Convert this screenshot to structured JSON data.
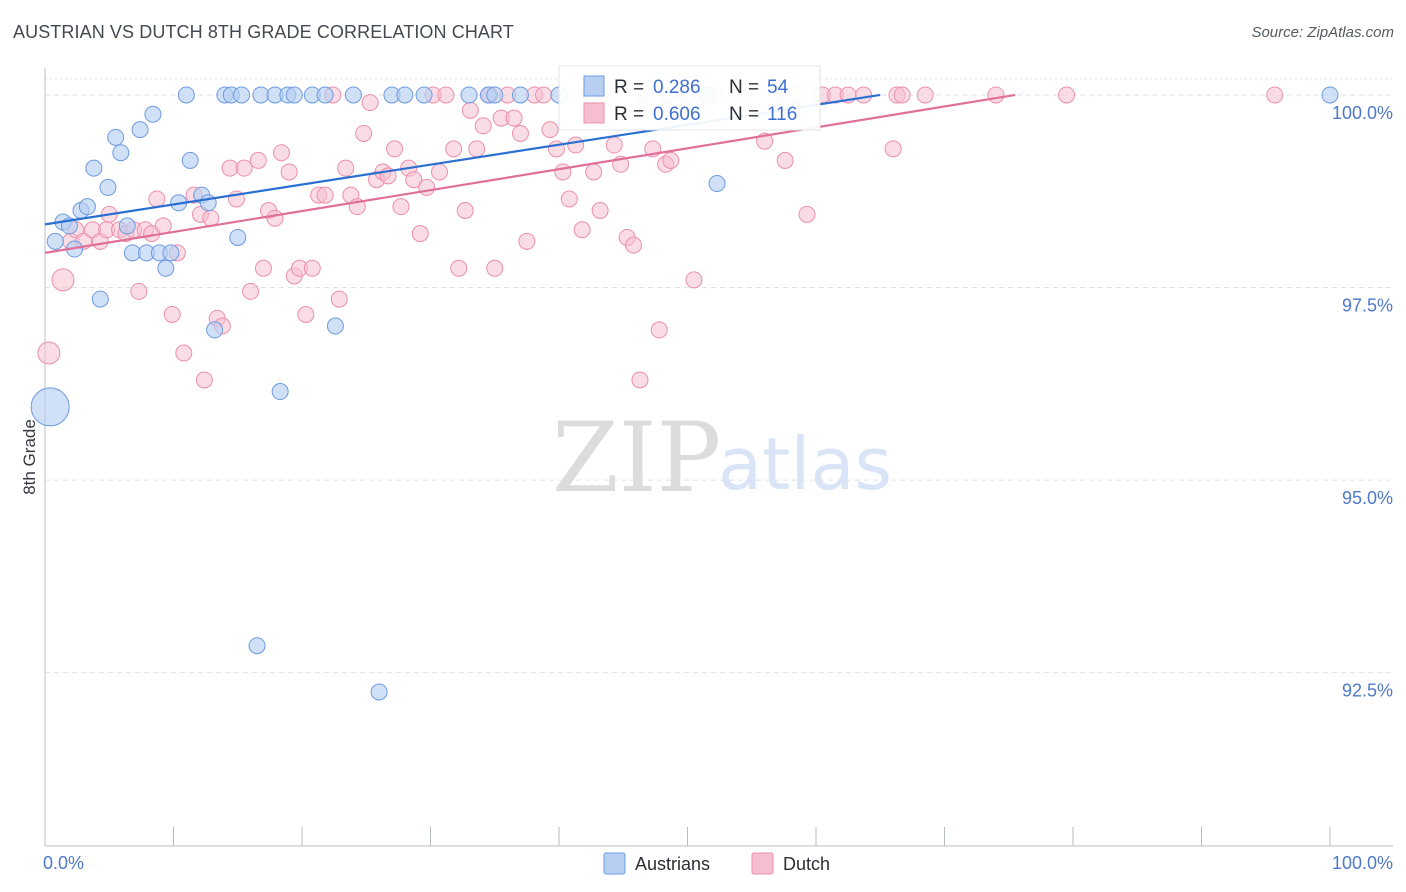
{
  "title": "AUSTRIAN VS DUTCH 8TH GRADE CORRELATION CHART",
  "source": "Source: ZipAtlas.com",
  "watermark": {
    "part1": "ZIP",
    "part2": "atlas"
  },
  "colors": {
    "austrians_fill": "#b7d0f2",
    "austrians_stroke": "#6d9be0",
    "austrians_line": "#2b6fd1",
    "dutch_fill": "#f6bfd0",
    "dutch_stroke": "#ec8fab",
    "dutch_line": "#e0709a",
    "tick_label": "#4f79c7",
    "grid": "#dde2ea"
  },
  "chart_data": {
    "type": "scatter",
    "title": "AUSTRIAN VS DUTCH 8TH GRADE CORRELATION CHART",
    "xlabel": "",
    "ylabel": "8th Grade",
    "xlim": [
      0,
      100
    ],
    "ylim": [
      90.25,
      100.35
    ],
    "x_tick_labels": {
      "left": "0.0%",
      "right": "100.0%"
    },
    "y_ticks": [
      {
        "value": 100.0,
        "label": "100.0%"
      },
      {
        "value": 97.5,
        "label": "97.5%"
      },
      {
        "value": 95.0,
        "label": "95.0%"
      },
      {
        "value": 92.5,
        "label": "92.5%"
      }
    ],
    "legend": [
      {
        "name": "Austrians",
        "r_label": "R = ",
        "r": "0.286",
        "n_label": "N = ",
        "n": "54"
      },
      {
        "name": "Dutch",
        "r_label": "R = ",
        "r": "0.606",
        "n_label": "N = ",
        "n": "116"
      }
    ],
    "series": [
      {
        "name": "Austrians",
        "trend": {
          "x0": 0,
          "y0": 98.32,
          "x1": 65,
          "y1": 100.0
        },
        "points": [
          {
            "x": 0.4,
            "y": 95.95,
            "size": 3
          },
          {
            "x": 0.8,
            "y": 98.1,
            "size": 1
          },
          {
            "x": 1.4,
            "y": 98.35,
            "size": 1
          },
          {
            "x": 1.9,
            "y": 98.3,
            "size": 1
          },
          {
            "x": 2.3,
            "y": 98.0,
            "size": 1
          },
          {
            "x": 2.8,
            "y": 98.5,
            "size": 1
          },
          {
            "x": 3.3,
            "y": 98.55,
            "size": 1
          },
          {
            "x": 3.8,
            "y": 99.05,
            "size": 1
          },
          {
            "x": 4.3,
            "y": 97.35,
            "size": 1
          },
          {
            "x": 4.9,
            "y": 98.8,
            "size": 1
          },
          {
            "x": 5.5,
            "y": 99.45,
            "size": 1
          },
          {
            "x": 5.9,
            "y": 99.25,
            "size": 1
          },
          {
            "x": 6.4,
            "y": 98.3,
            "size": 1
          },
          {
            "x": 6.8,
            "y": 97.95,
            "size": 1
          },
          {
            "x": 7.4,
            "y": 99.55,
            "size": 1
          },
          {
            "x": 7.9,
            "y": 97.95,
            "size": 1
          },
          {
            "x": 8.4,
            "y": 99.75,
            "size": 1
          },
          {
            "x": 8.9,
            "y": 97.95,
            "size": 1
          },
          {
            "x": 9.4,
            "y": 97.75,
            "size": 1
          },
          {
            "x": 9.8,
            "y": 97.95,
            "size": 1
          },
          {
            "x": 10.4,
            "y": 98.6,
            "size": 1
          },
          {
            "x": 11.0,
            "y": 100.0,
            "size": 1
          },
          {
            "x": 11.3,
            "y": 99.15,
            "size": 1
          },
          {
            "x": 12.2,
            "y": 98.7,
            "size": 1
          },
          {
            "x": 12.7,
            "y": 98.6,
            "size": 1
          },
          {
            "x": 13.2,
            "y": 96.95,
            "size": 1
          },
          {
            "x": 14.0,
            "y": 100.0,
            "size": 1
          },
          {
            "x": 14.5,
            "y": 100.0,
            "size": 1
          },
          {
            "x": 15.0,
            "y": 98.15,
            "size": 1
          },
          {
            "x": 15.3,
            "y": 100.0,
            "size": 1
          },
          {
            "x": 16.5,
            "y": 92.85,
            "size": 1
          },
          {
            "x": 16.8,
            "y": 100.0,
            "size": 1
          },
          {
            "x": 17.9,
            "y": 100.0,
            "size": 1
          },
          {
            "x": 18.3,
            "y": 96.15,
            "size": 1
          },
          {
            "x": 18.9,
            "y": 100.0,
            "size": 1
          },
          {
            "x": 19.4,
            "y": 100.0,
            "size": 1
          },
          {
            "x": 20.8,
            "y": 100.0,
            "size": 1
          },
          {
            "x": 21.8,
            "y": 100.0,
            "size": 1
          },
          {
            "x": 22.6,
            "y": 97.0,
            "size": 1
          },
          {
            "x": 24.0,
            "y": 100.0,
            "size": 1
          },
          {
            "x": 26.0,
            "y": 92.25,
            "size": 1
          },
          {
            "x": 27.0,
            "y": 100.0,
            "size": 1
          },
          {
            "x": 28.0,
            "y": 100.0,
            "size": 1
          },
          {
            "x": 29.5,
            "y": 100.0,
            "size": 1
          },
          {
            "x": 33.0,
            "y": 100.0,
            "size": 1
          },
          {
            "x": 34.5,
            "y": 100.0,
            "size": 1
          },
          {
            "x": 35.0,
            "y": 100.0,
            "size": 1
          },
          {
            "x": 37.0,
            "y": 100.0,
            "size": 1
          },
          {
            "x": 40.0,
            "y": 100.0,
            "size": 1
          },
          {
            "x": 42.5,
            "y": 100.0,
            "size": 1
          },
          {
            "x": 48.5,
            "y": 100.0,
            "size": 1
          },
          {
            "x": 51.5,
            "y": 100.0,
            "size": 1
          },
          {
            "x": 52.3,
            "y": 98.85,
            "size": 1
          },
          {
            "x": 100.0,
            "y": 100.0,
            "size": 1
          }
        ]
      },
      {
        "name": "Dutch",
        "trend": {
          "x0": 0,
          "y0": 97.95,
          "x1": 75.5,
          "y1": 100.0
        },
        "points": [
          {
            "x": 0.3,
            "y": 96.65,
            "size": 2
          },
          {
            "x": 1.4,
            "y": 97.6,
            "size": 2
          },
          {
            "x": 2.0,
            "y": 98.1,
            "size": 1
          },
          {
            "x": 2.4,
            "y": 98.25,
            "size": 1
          },
          {
            "x": 3.0,
            "y": 98.1,
            "size": 1
          },
          {
            "x": 3.7,
            "y": 98.25,
            "size": 1
          },
          {
            "x": 4.3,
            "y": 98.1,
            "size": 1
          },
          {
            "x": 4.8,
            "y": 98.25,
            "size": 1
          },
          {
            "x": 5.0,
            "y": 98.45,
            "size": 1
          },
          {
            "x": 5.8,
            "y": 98.25,
            "size": 1
          },
          {
            "x": 6.3,
            "y": 98.2,
            "size": 1
          },
          {
            "x": 6.9,
            "y": 98.25,
            "size": 1
          },
          {
            "x": 7.3,
            "y": 97.45,
            "size": 1
          },
          {
            "x": 7.8,
            "y": 98.25,
            "size": 1
          },
          {
            "x": 8.3,
            "y": 98.2,
            "size": 1
          },
          {
            "x": 8.7,
            "y": 98.65,
            "size": 1
          },
          {
            "x": 9.2,
            "y": 98.3,
            "size": 1
          },
          {
            "x": 9.9,
            "y": 97.15,
            "size": 1
          },
          {
            "x": 10.3,
            "y": 97.95,
            "size": 1
          },
          {
            "x": 10.8,
            "y": 96.65,
            "size": 1
          },
          {
            "x": 11.6,
            "y": 98.7,
            "size": 1
          },
          {
            "x": 12.1,
            "y": 98.45,
            "size": 1
          },
          {
            "x": 12.4,
            "y": 96.3,
            "size": 1
          },
          {
            "x": 12.9,
            "y": 98.4,
            "size": 1
          },
          {
            "x": 13.4,
            "y": 97.1,
            "size": 1
          },
          {
            "x": 13.8,
            "y": 97.0,
            "size": 1
          },
          {
            "x": 14.4,
            "y": 99.05,
            "size": 1
          },
          {
            "x": 14.9,
            "y": 98.65,
            "size": 1
          },
          {
            "x": 15.5,
            "y": 99.05,
            "size": 1
          },
          {
            "x": 16.0,
            "y": 97.45,
            "size": 1
          },
          {
            "x": 16.6,
            "y": 99.15,
            "size": 1
          },
          {
            "x": 17.0,
            "y": 97.75,
            "size": 1
          },
          {
            "x": 17.4,
            "y": 98.5,
            "size": 1
          },
          {
            "x": 17.9,
            "y": 98.4,
            "size": 1
          },
          {
            "x": 18.4,
            "y": 99.25,
            "size": 1
          },
          {
            "x": 19.0,
            "y": 99.0,
            "size": 1
          },
          {
            "x": 19.4,
            "y": 97.65,
            "size": 1
          },
          {
            "x": 19.8,
            "y": 97.75,
            "size": 1
          },
          {
            "x": 20.3,
            "y": 97.15,
            "size": 1
          },
          {
            "x": 20.8,
            "y": 97.75,
            "size": 1
          },
          {
            "x": 21.3,
            "y": 98.7,
            "size": 1
          },
          {
            "x": 21.8,
            "y": 98.7,
            "size": 1
          },
          {
            "x": 22.4,
            "y": 100.0,
            "size": 1
          },
          {
            "x": 22.9,
            "y": 97.35,
            "size": 1
          },
          {
            "x": 23.4,
            "y": 99.05,
            "size": 1
          },
          {
            "x": 23.8,
            "y": 98.7,
            "size": 1
          },
          {
            "x": 24.3,
            "y": 98.55,
            "size": 1
          },
          {
            "x": 24.8,
            "y": 99.5,
            "size": 1
          },
          {
            "x": 25.3,
            "y": 99.9,
            "size": 1
          },
          {
            "x": 25.8,
            "y": 98.9,
            "size": 1
          },
          {
            "x": 26.3,
            "y": 99.0,
            "size": 1
          },
          {
            "x": 26.7,
            "y": 98.95,
            "size": 1
          },
          {
            "x": 27.2,
            "y": 99.3,
            "size": 1
          },
          {
            "x": 27.7,
            "y": 98.55,
            "size": 1
          },
          {
            "x": 28.3,
            "y": 99.05,
            "size": 1
          },
          {
            "x": 28.7,
            "y": 98.9,
            "size": 1
          },
          {
            "x": 29.2,
            "y": 98.2,
            "size": 1
          },
          {
            "x": 29.7,
            "y": 98.8,
            "size": 1
          },
          {
            "x": 30.2,
            "y": 100.0,
            "size": 1
          },
          {
            "x": 30.7,
            "y": 99.0,
            "size": 1
          },
          {
            "x": 31.2,
            "y": 100.0,
            "size": 1
          },
          {
            "x": 31.8,
            "y": 99.3,
            "size": 1
          },
          {
            "x": 32.2,
            "y": 97.75,
            "size": 1
          },
          {
            "x": 32.7,
            "y": 98.5,
            "size": 1
          },
          {
            "x": 33.1,
            "y": 99.8,
            "size": 1
          },
          {
            "x": 33.6,
            "y": 99.3,
            "size": 1
          },
          {
            "x": 34.1,
            "y": 99.6,
            "size": 1
          },
          {
            "x": 34.6,
            "y": 100.0,
            "size": 1
          },
          {
            "x": 35.0,
            "y": 97.75,
            "size": 1
          },
          {
            "x": 35.5,
            "y": 99.7,
            "size": 1
          },
          {
            "x": 36.0,
            "y": 100.0,
            "size": 1
          },
          {
            "x": 36.5,
            "y": 99.7,
            "size": 1
          },
          {
            "x": 37.0,
            "y": 99.5,
            "size": 1
          },
          {
            "x": 37.5,
            "y": 98.1,
            "size": 1
          },
          {
            "x": 38.1,
            "y": 100.0,
            "size": 1
          },
          {
            "x": 38.8,
            "y": 100.0,
            "size": 1
          },
          {
            "x": 39.3,
            "y": 99.55,
            "size": 1
          },
          {
            "x": 39.8,
            "y": 99.3,
            "size": 1
          },
          {
            "x": 40.3,
            "y": 99.0,
            "size": 1
          },
          {
            "x": 40.8,
            "y": 98.65,
            "size": 1
          },
          {
            "x": 41.3,
            "y": 99.35,
            "size": 1
          },
          {
            "x": 41.8,
            "y": 98.25,
            "size": 1
          },
          {
            "x": 42.3,
            "y": 100.0,
            "size": 1
          },
          {
            "x": 42.7,
            "y": 99.0,
            "size": 1
          },
          {
            "x": 43.2,
            "y": 98.5,
            "size": 1
          },
          {
            "x": 43.7,
            "y": 100.0,
            "size": 1
          },
          {
            "x": 44.3,
            "y": 99.35,
            "size": 1
          },
          {
            "x": 44.8,
            "y": 99.1,
            "size": 1
          },
          {
            "x": 45.3,
            "y": 98.15,
            "size": 1
          },
          {
            "x": 45.8,
            "y": 98.05,
            "size": 1
          },
          {
            "x": 46.3,
            "y": 96.3,
            "size": 1
          },
          {
            "x": 46.8,
            "y": 100.0,
            "size": 1
          },
          {
            "x": 47.3,
            "y": 99.3,
            "size": 1
          },
          {
            "x": 47.8,
            "y": 96.95,
            "size": 1
          },
          {
            "x": 48.3,
            "y": 99.1,
            "size": 1
          },
          {
            "x": 48.7,
            "y": 99.15,
            "size": 1
          },
          {
            "x": 50.0,
            "y": 100.0,
            "size": 1
          },
          {
            "x": 50.5,
            "y": 97.6,
            "size": 1
          },
          {
            "x": 52.0,
            "y": 100.0,
            "size": 1
          },
          {
            "x": 54.0,
            "y": 100.0,
            "size": 1
          },
          {
            "x": 56.0,
            "y": 99.4,
            "size": 1
          },
          {
            "x": 57.0,
            "y": 100.0,
            "size": 1
          },
          {
            "x": 57.6,
            "y": 99.15,
            "size": 1
          },
          {
            "x": 58.5,
            "y": 100.0,
            "size": 1
          },
          {
            "x": 59.3,
            "y": 98.45,
            "size": 1
          },
          {
            "x": 60.5,
            "y": 100.0,
            "size": 1
          },
          {
            "x": 61.5,
            "y": 100.0,
            "size": 1
          },
          {
            "x": 62.5,
            "y": 100.0,
            "size": 1
          },
          {
            "x": 63.7,
            "y": 100.0,
            "size": 1
          },
          {
            "x": 66.0,
            "y": 99.3,
            "size": 1
          },
          {
            "x": 66.3,
            "y": 100.0,
            "size": 1
          },
          {
            "x": 66.7,
            "y": 100.0,
            "size": 1
          },
          {
            "x": 68.5,
            "y": 100.0,
            "size": 1
          },
          {
            "x": 74.0,
            "y": 100.0,
            "size": 1
          },
          {
            "x": 79.5,
            "y": 100.0,
            "size": 1
          },
          {
            "x": 95.7,
            "y": 100.0,
            "size": 1
          }
        ]
      }
    ]
  }
}
